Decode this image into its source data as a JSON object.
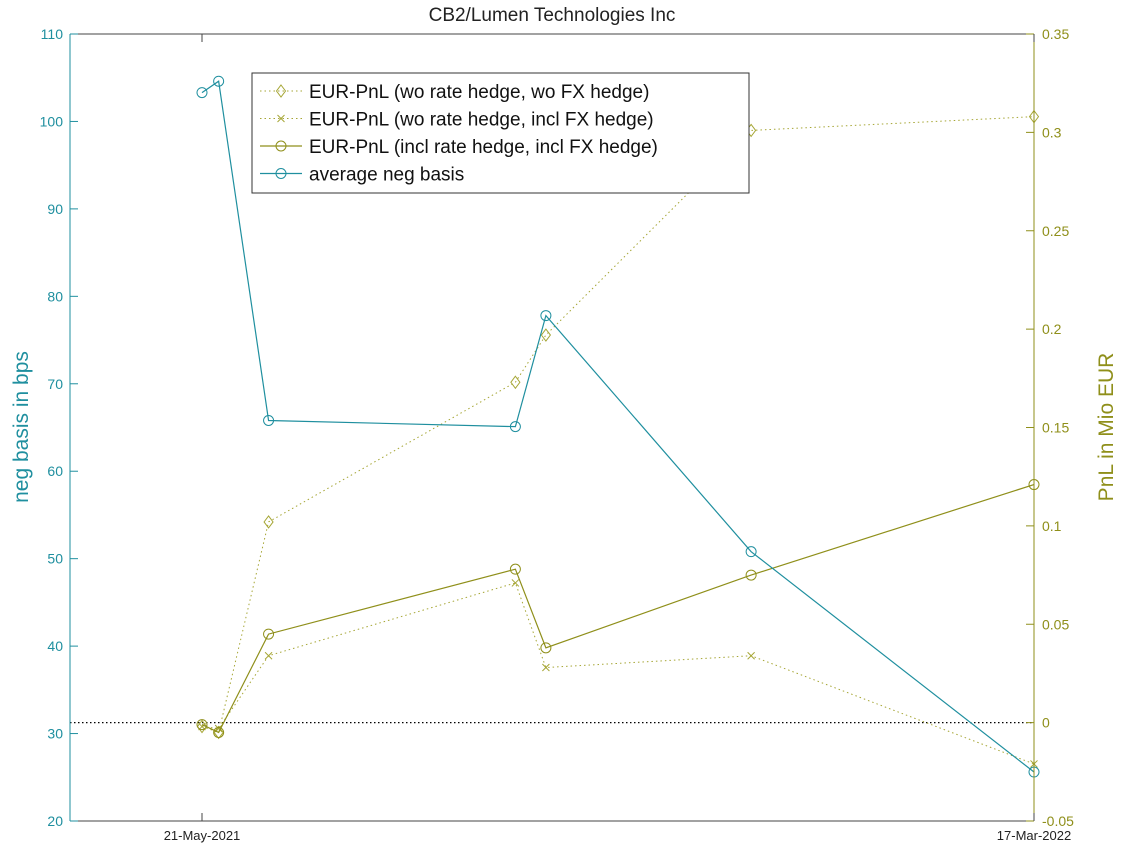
{
  "chart_data": {
    "type": "line",
    "title": "CB2/Lumen Technologies Inc",
    "x_start_date": "2021-05-21",
    "x_end_date": "2022-03-17",
    "x_tick_labels": [
      "21-May-2021",
      "17-Mar-2022"
    ],
    "left_axis": {
      "label": "neg basis in bps",
      "ylim": [
        20,
        110
      ],
      "ticks": [
        20,
        30,
        40,
        50,
        60,
        70,
        80,
        90,
        100,
        110
      ],
      "color": "#1f8f9f"
    },
    "right_axis": {
      "label": "PnL in Mio EUR",
      "ylim": [
        -0.05,
        0.35
      ],
      "ticks": [
        -0.05,
        0,
        0.05,
        0.1,
        0.15,
        0.2,
        0.25,
        0.3,
        0.35
      ],
      "tick_labels": [
        "-0.05",
        "0",
        "0.05",
        "0.1",
        "0.15",
        "0.2",
        "0.25",
        "0.3",
        "0.35"
      ],
      "color": "#8f8f1a"
    },
    "legend_position": "top-left",
    "series": [
      {
        "name": "EUR-PnL (wo rate hedge, wo FX hedge)",
        "axis": "right",
        "line": "dotted",
        "marker": "diamond",
        "color": "#a6a635",
        "x": [
          "2021-05-21",
          "2021-05-27",
          "2021-06-14",
          "2021-09-11",
          "2021-09-22",
          "2021-12-05",
          "2022-03-17"
        ],
        "values": [
          -0.002,
          -0.005,
          0.102,
          0.173,
          0.197,
          0.301,
          0.308
        ]
      },
      {
        "name": "EUR-PnL (wo rate hedge, incl FX hedge)",
        "axis": "right",
        "line": "dotted",
        "marker": "x",
        "color": "#a6a635",
        "x": [
          "2021-05-21",
          "2021-05-27",
          "2021-06-14",
          "2021-09-11",
          "2021-09-22",
          "2021-12-05",
          "2022-03-17"
        ],
        "values": [
          -0.002,
          -0.003,
          0.034,
          0.071,
          0.028,
          0.034,
          -0.021
        ]
      },
      {
        "name": "EUR-PnL (incl rate hedge, incl FX hedge)",
        "axis": "right",
        "line": "solid",
        "marker": "circle",
        "color": "#8f8f1a",
        "x": [
          "2021-05-21",
          "2021-05-27",
          "2021-06-14",
          "2021-09-11",
          "2021-09-22",
          "2021-12-05",
          "2022-03-17"
        ],
        "values": [
          -0.001,
          -0.005,
          0.045,
          0.078,
          0.038,
          0.075,
          0.121
        ]
      },
      {
        "name": "average neg basis",
        "axis": "left",
        "line": "solid",
        "marker": "circle",
        "color": "#1f8f9f",
        "x": [
          "2021-05-21",
          "2021-05-27",
          "2021-06-14",
          "2021-09-11",
          "2021-09-22",
          "2021-12-05",
          "2022-03-17"
        ],
        "values": [
          103.3,
          104.6,
          65.8,
          65.1,
          77.8,
          50.8,
          25.6
        ]
      }
    ],
    "reference_lines": [
      {
        "axis": "right",
        "y": 0,
        "style": "dotted",
        "color": "#000000"
      }
    ]
  }
}
